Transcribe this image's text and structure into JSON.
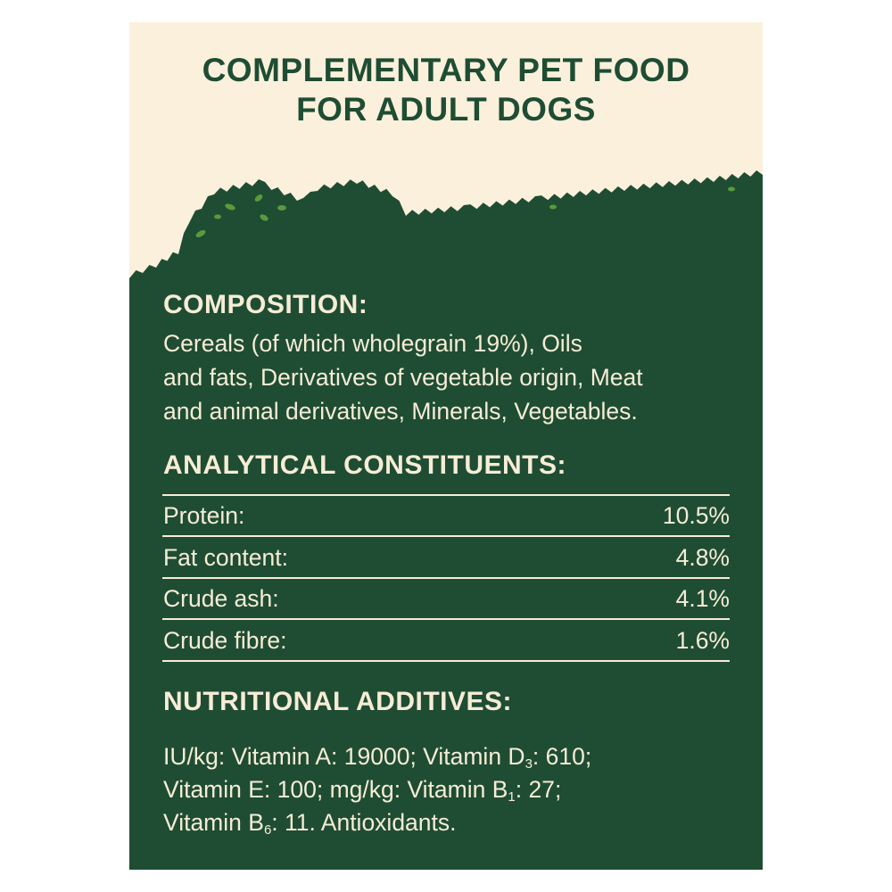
{
  "header": {
    "title_lines": [
      "COMPLEMENTARY PET FOOD",
      "FOR ADULT DOGS"
    ]
  },
  "composition": {
    "heading": "COMPOSITION:",
    "lines": [
      "Cereals (of which wholegrain 19%), Oils",
      "and fats, Derivatives of vegetable origin, Meat",
      "and animal derivatives, Minerals, Vegetables."
    ]
  },
  "analytical": {
    "heading": "ANALYTICAL CONSTITUENTS:",
    "rows": [
      [
        "Protein:",
        "10.5%"
      ],
      [
        "Fat content:",
        "4.8%"
      ],
      [
        "Crude ash:",
        "4.1%"
      ],
      [
        "Crude fibre:",
        "1.6%"
      ]
    ]
  },
  "additives": {
    "heading": "NUTRITIONAL ADDITIVES:",
    "lines": [
      [
        "IU/kg: Vitamin A: 19000; Vitamin D",
        "3",
        ": 610;"
      ],
      [
        "Vitamin E: 100; mg/kg: Vitamin B",
        "1",
        ": 27;"
      ],
      [
        "Vitamin B",
        "6",
        ": 11. Antioxidants."
      ]
    ]
  }
}
